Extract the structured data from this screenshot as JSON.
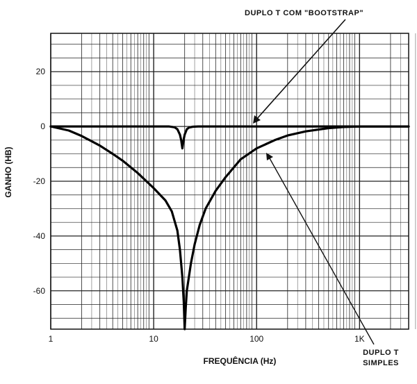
{
  "chart_data": {
    "type": "line",
    "xscale": "log",
    "xlim": [
      1,
      3000
    ],
    "ylim": [
      -74,
      34
    ],
    "xlabel": "FREQUÊNCIA (Hz)",
    "ylabel": "GANHO (HB)",
    "x_ticks": [
      {
        "value": 1,
        "label": "1"
      },
      {
        "value": 10,
        "label": "10"
      },
      {
        "value": 100,
        "label": "100"
      },
      {
        "value": 1000,
        "label": "1K"
      }
    ],
    "y_ticks": [
      {
        "value": 20,
        "label": "20"
      },
      {
        "value": 0,
        "label": "0"
      },
      {
        "value": -20,
        "label": "-20"
      },
      {
        "value": -40,
        "label": "-40"
      },
      {
        "value": -60,
        "label": "-60"
      }
    ],
    "grid": true,
    "series": [
      {
        "name": "DUPLO T COM \"BOOTSTRAP\"",
        "x": [
          1,
          10,
          14,
          16,
          17,
          18,
          18.5,
          19,
          19.5,
          20,
          21,
          22,
          24,
          27,
          30,
          50,
          100,
          1000,
          3000
        ],
        "y": [
          0,
          0,
          0,
          -0.3,
          -1,
          -3,
          -5,
          -8,
          -5,
          -3,
          -1,
          -0.4,
          -0.1,
          0,
          0,
          0,
          0,
          0,
          0
        ]
      },
      {
        "name": "DUPLO T SIMPLES",
        "x": [
          1,
          1.5,
          2,
          3,
          4,
          5,
          7,
          10,
          13,
          15,
          17,
          18,
          19,
          19.6,
          20,
          20.5,
          21,
          23,
          25,
          28,
          32,
          40,
          50,
          70,
          100,
          150,
          200,
          300,
          500,
          700,
          1000,
          3000
        ],
        "y": [
          0,
          -1.5,
          -3.5,
          -7,
          -10,
          -12.5,
          -17,
          -22.5,
          -27,
          -31,
          -38,
          -45,
          -55,
          -64,
          -74,
          -66,
          -60,
          -50,
          -43,
          -36,
          -30,
          -23.5,
          -18.5,
          -12,
          -8,
          -5,
          -3.3,
          -1.8,
          -0.6,
          -0.2,
          0,
          0
        ]
      }
    ],
    "annotations": [
      {
        "text": "DUPLO T COM \"BOOTSTRAP\"",
        "target": [
          110,
          0
        ]
      },
      {
        "lines": [
          "DUPLO T",
          "SIMPLES"
        ],
        "target": [
          130,
          -10
        ]
      }
    ]
  }
}
